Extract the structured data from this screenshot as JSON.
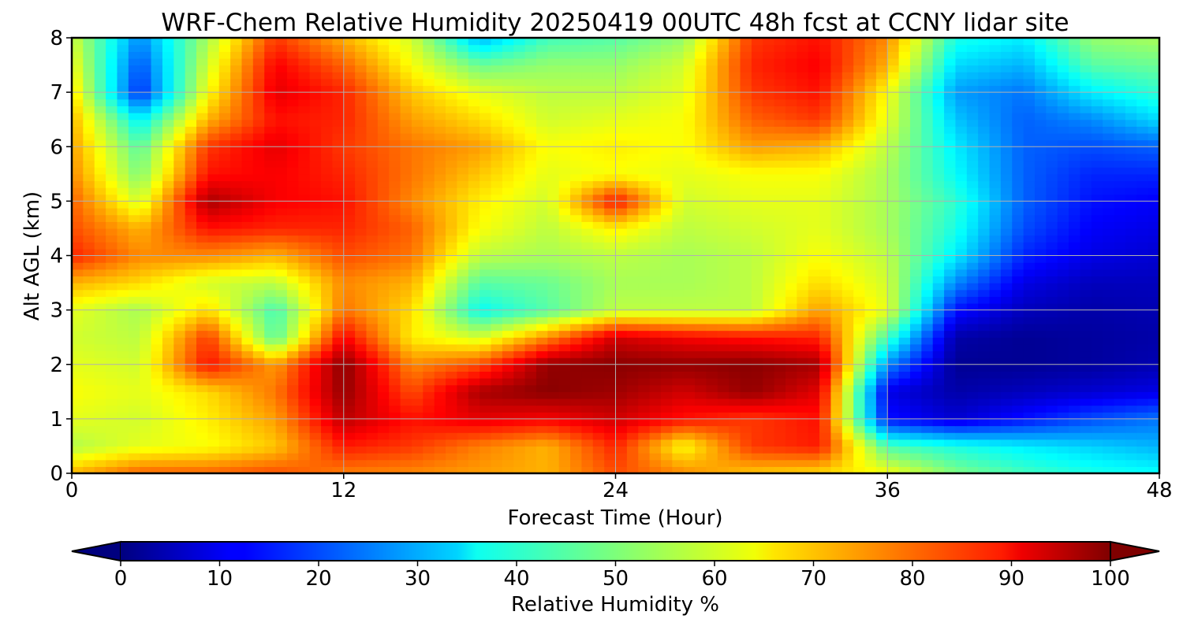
{
  "chart_data": {
    "type": "heatmap",
    "title": "WRF-Chem Relative Humidity 20250419 00UTC 48h fcst at CCNY lidar site",
    "xlabel": "Forecast Time (Hour)",
    "ylabel": "Alt AGL (km)",
    "xlim": [
      0,
      48
    ],
    "ylim": [
      0,
      8
    ],
    "x_ticks": [
      "0",
      "12",
      "24",
      "36",
      "48"
    ],
    "y_ticks": [
      "0",
      "1",
      "2",
      "3",
      "4",
      "5",
      "6",
      "7",
      "8"
    ],
    "grid": true,
    "colormap": "jet",
    "colorbar": {
      "label": "Relative Humidity %",
      "range": [
        0,
        100
      ],
      "extend": "both",
      "ticks": [
        "0",
        "10",
        "20",
        "30",
        "40",
        "50",
        "60",
        "70",
        "80",
        "90",
        "100"
      ]
    },
    "x": [
      0,
      3,
      6,
      9,
      12,
      15,
      18,
      21,
      24,
      27,
      30,
      33,
      36,
      39,
      42,
      45,
      48
    ],
    "y": [
      0,
      0.5,
      1,
      1.5,
      2,
      2.5,
      3,
      3.5,
      4,
      4.5,
      5,
      5.5,
      6,
      6.5,
      7,
      7.5,
      8
    ],
    "z": [
      [
        70,
        78,
        78,
        80,
        75,
        74,
        72,
        70,
        80,
        74,
        68,
        66,
        62,
        50,
        44,
        40,
        38
      ],
      [
        55,
        60,
        62,
        68,
        85,
        82,
        75,
        70,
        84,
        62,
        82,
        85,
        45,
        40,
        36,
        33,
        30
      ],
      [
        60,
        58,
        64,
        72,
        94,
        86,
        90,
        88,
        92,
        86,
        82,
        86,
        14,
        8,
        14,
        20,
        24
      ],
      [
        62,
        60,
        66,
        76,
        98,
        80,
        96,
        99,
        97,
        92,
        98,
        90,
        10,
        4,
        6,
        8,
        10
      ],
      [
        60,
        58,
        86,
        72,
        99,
        74,
        80,
        98,
        99,
        98,
        99,
        96,
        26,
        2,
        2,
        3,
        5
      ],
      [
        58,
        56,
        82,
        46,
        88,
        64,
        58,
        74,
        92,
        88,
        86,
        84,
        44,
        4,
        2,
        3,
        4
      ],
      [
        60,
        54,
        66,
        44,
        76,
        66,
        38,
        46,
        56,
        56,
        56,
        72,
        60,
        14,
        6,
        4,
        5
      ],
      [
        70,
        66,
        58,
        56,
        74,
        70,
        46,
        48,
        54,
        54,
        56,
        66,
        58,
        26,
        10,
        6,
        6
      ],
      [
        84,
        74,
        74,
        70,
        80,
        76,
        56,
        54,
        56,
        54,
        56,
        62,
        56,
        36,
        16,
        10,
        8
      ],
      [
        80,
        70,
        86,
        84,
        84,
        78,
        62,
        56,
        64,
        56,
        58,
        60,
        54,
        40,
        20,
        12,
        10
      ],
      [
        78,
        58,
        96,
        88,
        86,
        74,
        64,
        58,
        86,
        58,
        60,
        60,
        54,
        42,
        22,
        14,
        12
      ],
      [
        74,
        50,
        86,
        88,
        84,
        76,
        68,
        60,
        62,
        60,
        62,
        62,
        54,
        38,
        22,
        16,
        16
      ],
      [
        72,
        46,
        82,
        90,
        82,
        76,
        72,
        62,
        64,
        62,
        72,
        70,
        56,
        36,
        22,
        20,
        22
      ],
      [
        70,
        36,
        70,
        86,
        84,
        72,
        66,
        58,
        60,
        62,
        78,
        82,
        60,
        32,
        22,
        26,
        34
      ],
      [
        66,
        16,
        62,
        90,
        84,
        68,
        60,
        56,
        56,
        60,
        82,
        86,
        62,
        28,
        24,
        36,
        42
      ],
      [
        62,
        20,
        58,
        88,
        78,
        62,
        48,
        52,
        52,
        58,
        84,
        88,
        70,
        34,
        30,
        46,
        48
      ],
      [
        58,
        26,
        54,
        82,
        70,
        58,
        30,
        44,
        46,
        52,
        82,
        86,
        74,
        40,
        36,
        52,
        54
      ]
    ]
  }
}
